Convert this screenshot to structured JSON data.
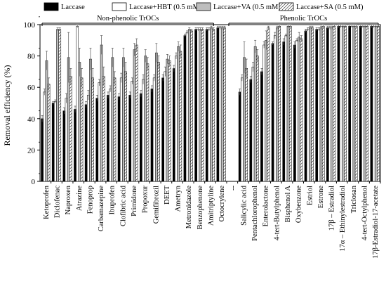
{
  "chart_data": {
    "type": "bar",
    "ylabel": "Removal efficiency (%)",
    "ylim": [
      0,
      100
    ],
    "yticks": [
      0,
      20,
      40,
      60,
      80,
      100
    ],
    "grid": false,
    "legend_position": "top",
    "groups": [
      {
        "label": "Non-phenolic TrOCs",
        "start": 0,
        "end": 15
      },
      {
        "label": "Phenolic TrOCs",
        "start": 17,
        "end": 30
      }
    ],
    "categories": [
      "Ketoprofen",
      "Diclofenac",
      "Naproxen",
      "Atrazine",
      "Fenoprop",
      "Carbamazepine",
      "Ibuprofen",
      "Clofibric acid",
      "Primidone",
      "Propoxur",
      "Gemifibrozil",
      "DEET",
      "Ametryn",
      "Metronidazole",
      "Benzophenone",
      "Amitriptyline",
      "Octocrylene",
      "--",
      "Salicylic acid",
      "Pentachlorophenol",
      "Enterolactone",
      "4-tert-Butylphenol",
      "Bisphenol A",
      "Oxybenzone",
      "Estriol",
      "Estrone",
      "17β – Estradiol",
      "17α – Ethinylestradiol",
      "Triclosan",
      "4-tert-Octylphenol",
      "17β-Estradiol-17-acetate"
    ],
    "series": [
      {
        "name": "Laccase",
        "fill": "#000000",
        "pattern": "solid",
        "values": [
          40,
          50,
          45,
          46,
          49,
          53,
          55,
          54,
          55,
          56,
          59,
          66,
          72,
          93,
          97,
          97,
          98,
          null,
          57,
          65,
          70,
          88,
          89,
          87,
          96,
          97,
          98,
          99,
          99,
          99,
          99
        ],
        "errors": [
          2,
          1,
          2,
          2,
          2,
          2,
          2,
          2,
          2,
          2,
          2,
          2,
          2,
          1,
          1,
          1,
          1,
          null,
          2,
          2,
          2,
          1,
          2,
          2,
          1,
          1,
          1,
          1,
          1,
          1,
          1
        ]
      },
      {
        "name": "Laccase+HBT (0.5 mM)",
        "fill": "#ffffff",
        "pattern": "open",
        "values": [
          57,
          51,
          53,
          99,
          55,
          63,
          59,
          66,
          64,
          65,
          66,
          70,
          80,
          95,
          97,
          97,
          98,
          null,
          66,
          73,
          87,
          93,
          93,
          90,
          97,
          97,
          98,
          99,
          99,
          99,
          99
        ],
        "errors": [
          2,
          1,
          3,
          1,
          3,
          2,
          2,
          3,
          2,
          3,
          2,
          3,
          2,
          1,
          1,
          1,
          1,
          null,
          2,
          3,
          2,
          2,
          1,
          1,
          1,
          1,
          1,
          1,
          1,
          1,
          1
        ]
      },
      {
        "name": "Laccase+VA (0.5 mM)",
        "fill": "#bdbdbd",
        "pattern": "solid",
        "values": [
          77,
          97,
          79,
          76,
          78,
          87,
          79,
          79,
          84,
          80,
          82,
          78,
          86,
          97,
          97,
          98,
          98,
          null,
          79,
          86,
          90,
          98,
          99,
          92,
          98,
          98,
          98,
          99,
          99,
          99,
          99
        ],
        "errors": [
          6,
          1,
          16,
          9,
          7,
          6,
          6,
          6,
          4,
          4,
          6,
          3,
          3,
          1,
          1,
          1,
          1,
          null,
          10,
          4,
          6,
          1,
          1,
          3,
          1,
          1,
          1,
          1,
          1,
          1,
          1
        ]
      },
      {
        "name": "Laccase+SA (0.5 mM)",
        "fill": "#ffffff",
        "pattern": "hatch",
        "values": [
          62,
          97,
          67,
          66,
          66,
          67,
          66,
          70,
          87,
          75,
          76,
          77,
          83,
          96,
          97,
          97,
          98,
          null,
          72,
          80,
          98,
          99,
          99,
          91,
          98,
          99,
          99,
          99,
          99,
          99,
          99
        ],
        "errors": [
          4,
          1,
          5,
          6,
          6,
          6,
          4,
          6,
          4,
          4,
          4,
          3,
          4,
          1,
          1,
          1,
          1,
          null,
          6,
          4,
          1,
          1,
          1,
          2,
          1,
          1,
          1,
          1,
          1,
          1,
          1
        ]
      }
    ]
  }
}
